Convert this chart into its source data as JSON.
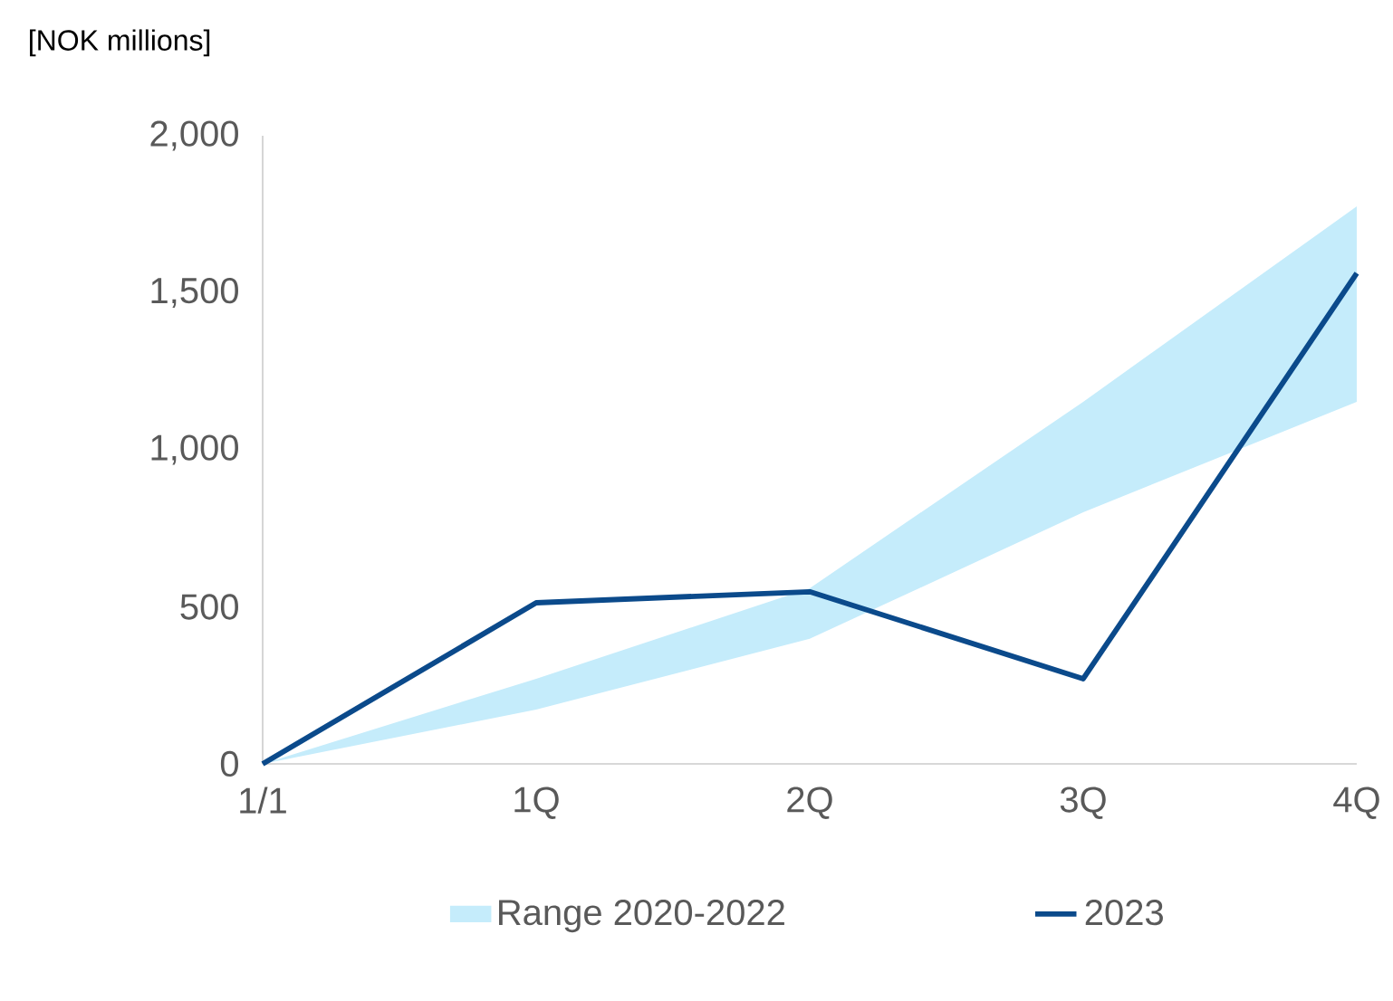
{
  "chart_data": {
    "type": "line",
    "ylabel": "[NOK millions]",
    "categories": [
      "1/1",
      "1Q",
      "2Q",
      "3Q",
      "4Q"
    ],
    "series": [
      {
        "type": "area",
        "name": "Range 2020-2022",
        "color": "#c5ecfb",
        "values": [
          null,
          null,
          null,
          null,
          null
        ],
        "lower": [
          0,
          173,
          398,
          801,
          1153
        ],
        "upper": [
          0,
          271,
          559,
          1153,
          1775
        ]
      },
      {
        "name": "2023",
        "color": "#0b4a8b",
        "values": [
          0,
          513,
          548,
          271,
          1562
        ]
      }
    ],
    "ylim": [
      0,
      2000
    ],
    "yticks": [
      0,
      500,
      {
        "value": 1000,
        "label": "1,000"
      },
      {
        "value": 1500,
        "label": "1,500"
      },
      {
        "value": 2000,
        "label": "2,000"
      }
    ],
    "grid": false,
    "legend": "bottom",
    "marker": "none",
    "line_style": "solid"
  }
}
